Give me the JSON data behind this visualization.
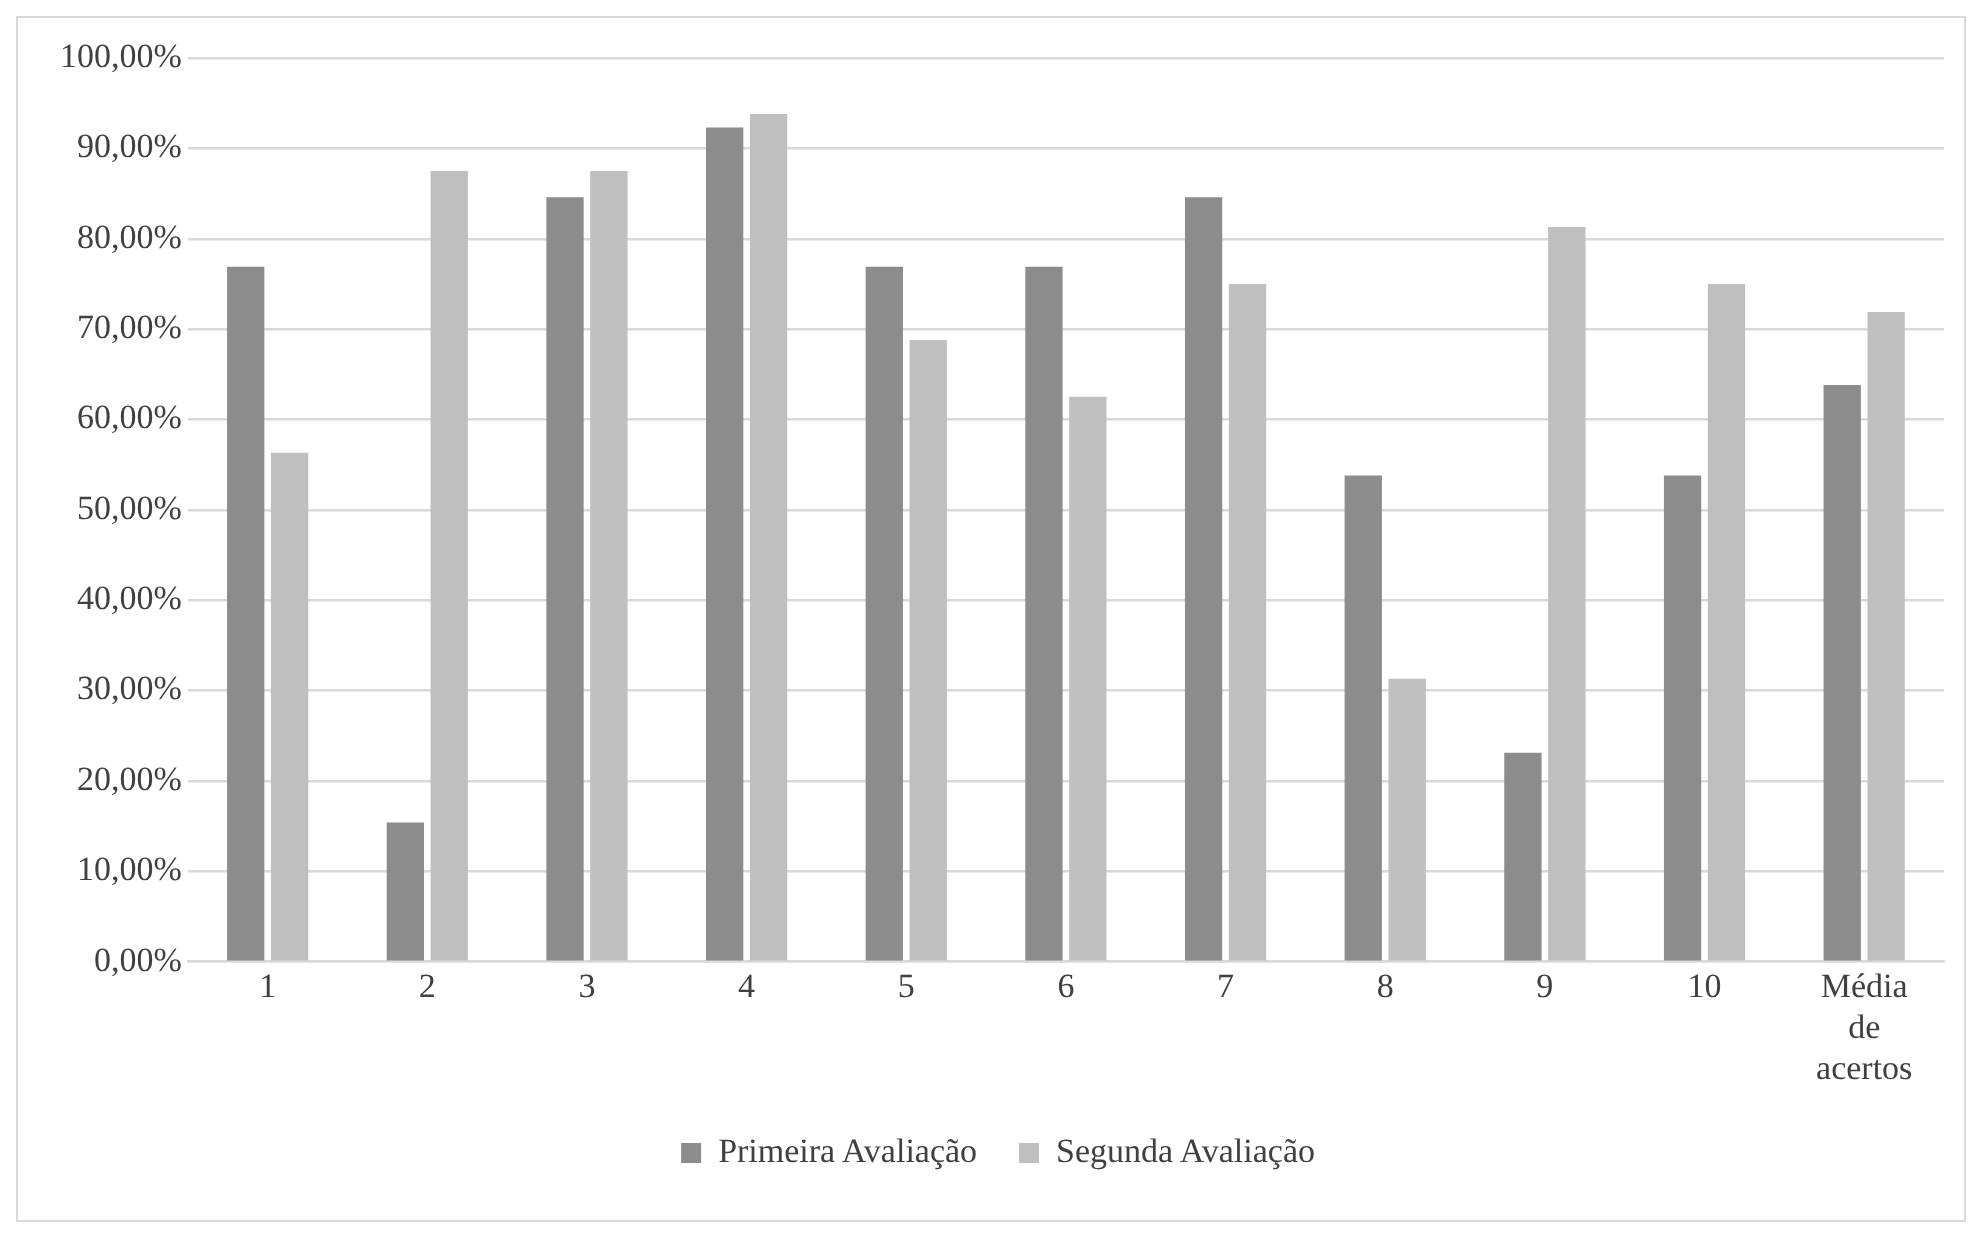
{
  "chart_data": {
    "type": "bar",
    "categories": [
      "1",
      "2",
      "3",
      "4",
      "5",
      "6",
      "7",
      "8",
      "9",
      "10",
      "Média de acertos"
    ],
    "series": [
      {
        "name": "Primeira Avaliação",
        "color": "#8c8c8c",
        "values": [
          76.9,
          15.4,
          84.6,
          92.3,
          76.9,
          76.9,
          84.6,
          53.8,
          23.1,
          53.8,
          63.8
        ]
      },
      {
        "name": "Segunda Avaliação",
        "color": "#bfbfbf",
        "values": [
          56.3,
          87.5,
          87.5,
          93.8,
          68.8,
          62.5,
          75.0,
          31.3,
          81.3,
          75.0,
          71.9
        ]
      }
    ],
    "ylim": [
      0,
      100
    ],
    "yticks": [
      {
        "value": 0,
        "label": "0,00%"
      },
      {
        "value": 10,
        "label": "10,00%"
      },
      {
        "value": 20,
        "label": "20,00%"
      },
      {
        "value": 30,
        "label": "30,00%"
      },
      {
        "value": 40,
        "label": "40,00%"
      },
      {
        "value": 50,
        "label": "50,00%"
      },
      {
        "value": 60,
        "label": "60,00%"
      },
      {
        "value": 70,
        "label": "70,00%"
      },
      {
        "value": 80,
        "label": "80,00%"
      },
      {
        "value": 90,
        "label": "90,00%"
      },
      {
        "value": 100,
        "label": "100,00%"
      }
    ],
    "grid": "y",
    "legend": "bottom"
  }
}
